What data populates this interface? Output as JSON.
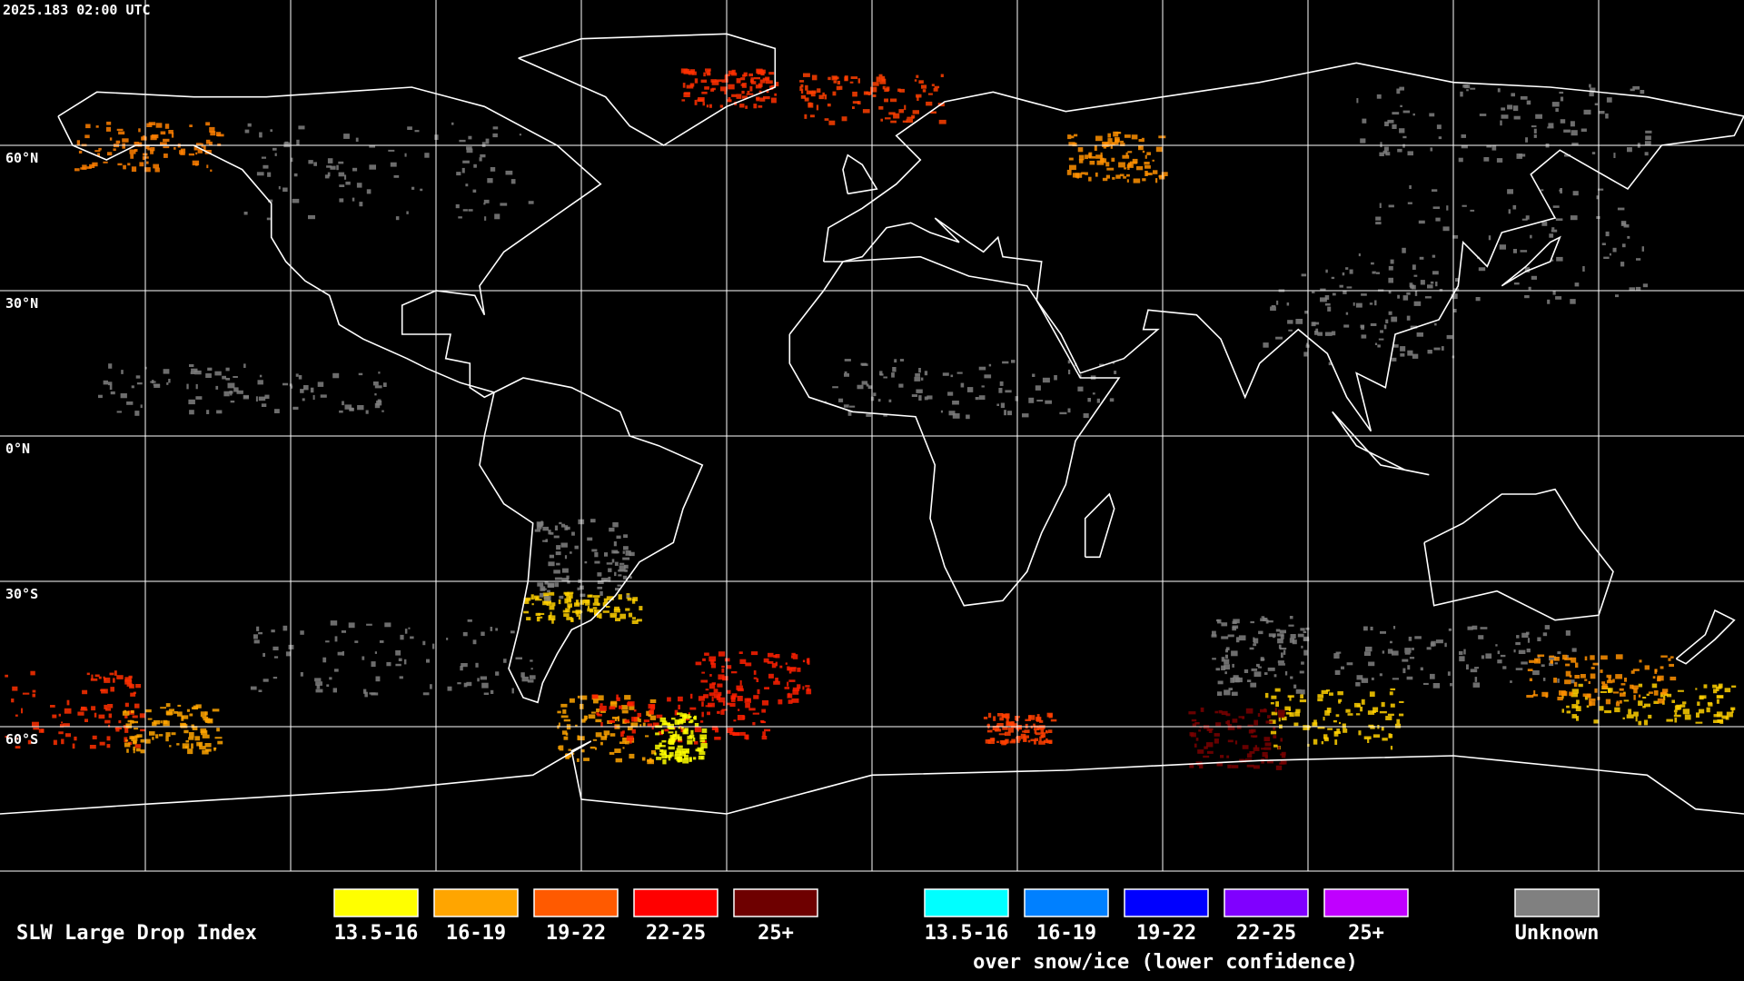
{
  "timestamp": "2025.183 02:00 UTC",
  "latitude_labels": [
    "60°N",
    "30°N",
    "0°N",
    "30°S",
    "60°S"
  ],
  "legend": {
    "title": "SLW Large Drop Index",
    "items": [
      {
        "label": "13.5-16",
        "color": "#ffff00"
      },
      {
        "label": "16-19",
        "color": "#ffa500"
      },
      {
        "label": "19-22",
        "color": "#ff5a00"
      },
      {
        "label": "22-25",
        "color": "#ff0000"
      },
      {
        "label": "25+",
        "color": "#6e0000"
      }
    ],
    "snow_items": [
      {
        "label": "13.5-16",
        "color": "#00ffff"
      },
      {
        "label": "16-19",
        "color": "#0080ff"
      },
      {
        "label": "19-22",
        "color": "#0000ff"
      },
      {
        "label": "22-25",
        "color": "#8000ff"
      },
      {
        "label": "25+",
        "color": "#c000ff"
      }
    ],
    "snow_note": "over snow/ice (lower confidence)",
    "unknown": {
      "label": "Unknown",
      "color": "#808080"
    }
  }
}
